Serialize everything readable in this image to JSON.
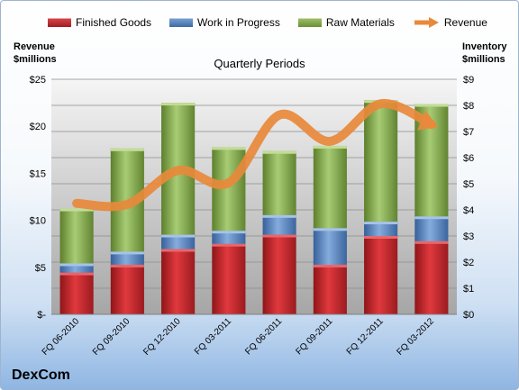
{
  "company": "DexCom",
  "chart_data": {
    "type": "bar",
    "stacked": true,
    "title": "Quarterly Periods",
    "left_axis_title": [
      "Revenue",
      "$millions"
    ],
    "right_axis_title": [
      "Inventory",
      "$millions"
    ],
    "categories": [
      "FQ 06-2010",
      "FQ 09-2010",
      "FQ 12-2010",
      "FQ 03-2011",
      "FQ 06-2011",
      "FQ 09-2011",
      "FQ 12-2011",
      "FQ 03-2012"
    ],
    "inventory_axis": {
      "min": 0,
      "max": 9,
      "ticks": [
        "$0",
        "$1",
        "$2",
        "$3",
        "$4",
        "$5",
        "$6",
        "$7",
        "$8",
        "$9"
      ]
    },
    "revenue_axis": {
      "min": 0,
      "max": 25,
      "ticks": [
        "$-",
        "$5",
        "$10",
        "$15",
        "$20",
        "$25"
      ]
    },
    "series": [
      {
        "name": "Finished Goods",
        "axis": "inventory",
        "color": "#c0282d",
        "values": [
          1.6,
          1.9,
          2.5,
          2.7,
          3.05,
          1.9,
          3.0,
          2.8
        ]
      },
      {
        "name": "Work in Progress",
        "axis": "inventory",
        "color": "#4f81bd",
        "values": [
          0.35,
          0.5,
          0.55,
          0.5,
          0.75,
          1.4,
          0.55,
          0.95
        ]
      },
      {
        "name": "Raw Materials",
        "axis": "inventory",
        "color": "#7fa347",
        "values": [
          2.1,
          3.95,
          5.05,
          3.2,
          2.45,
          3.15,
          4.65,
          4.3
        ]
      },
      {
        "name": "Revenue",
        "axis": "revenue",
        "type": "line",
        "color": "#e8893b",
        "values": [
          11.8,
          11.7,
          15.3,
          14.0,
          21.2,
          18.4,
          22.4,
          20.2
        ]
      }
    ],
    "grid": true,
    "legend_position": "top"
  }
}
